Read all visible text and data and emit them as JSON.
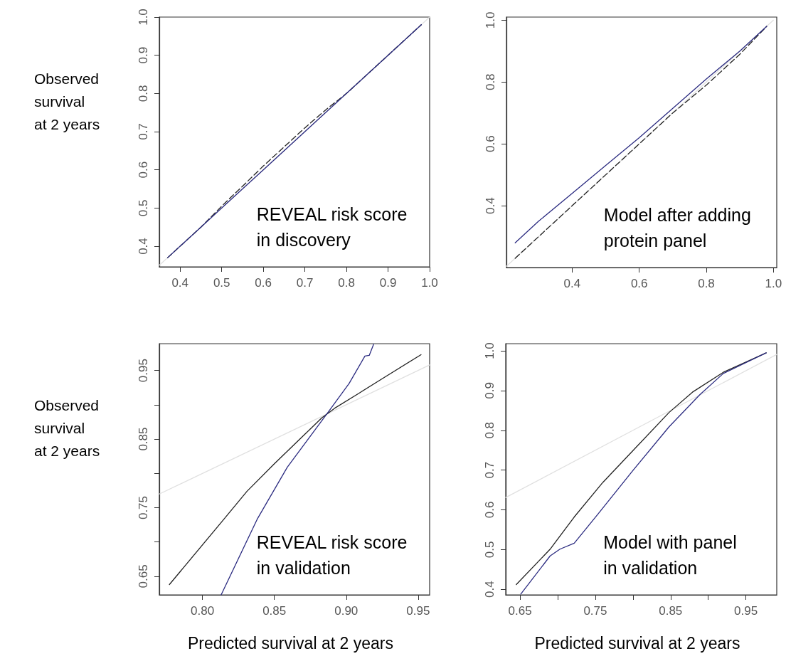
{
  "chart_data": [
    {
      "type": "line",
      "ylabel": "Observed\nsurvival\nat 2 years",
      "annotations": [
        "REVEAL risk score\nin discovery"
      ],
      "xlim": [
        0.35,
        1.0
      ],
      "ylim": [
        0.346,
        1.0
      ],
      "xticks": [
        0.4,
        0.5,
        0.6,
        0.7,
        0.8,
        0.9,
        {
          "value": 1,
          "label": "1.0"
        }
      ],
      "yticks": [
        0.4,
        0.5,
        0.6,
        0.7,
        0.8,
        0.9,
        {
          "value": 1,
          "label": "1.0"
        }
      ],
      "grid": false,
      "marker": "none",
      "series": [
        {
          "color": "#e0e0e0",
          "line_style": "solid",
          "x": [
            0.35,
            1.0
          ],
          "values": [
            0.35,
            1.0
          ]
        },
        {
          "color": "#222222",
          "line_style": "dashed",
          "x": [
            0.37,
            0.45,
            0.5,
            0.55,
            0.6,
            0.65,
            0.7,
            0.75,
            0.8,
            0.9,
            0.98
          ],
          "values": [
            0.37,
            0.45,
            0.505,
            0.557,
            0.61,
            0.66,
            0.71,
            0.757,
            0.8,
            0.9,
            0.98
          ]
        },
        {
          "color": "#2b2b80",
          "line_style": "solid",
          "x": [
            0.37,
            0.45,
            0.5,
            0.6,
            0.7,
            0.8,
            0.9,
            0.98
          ],
          "values": [
            0.37,
            0.45,
            0.5,
            0.6,
            0.7,
            0.8,
            0.9,
            0.98
          ]
        }
      ]
    },
    {
      "type": "line",
      "annotations": [
        "Model after adding\nprotein panel"
      ],
      "xlim": [
        0.204,
        1.01
      ],
      "ylim": [
        0.2,
        1.01
      ],
      "xticks": [
        0.4,
        0.6,
        0.8,
        {
          "value": 1,
          "label": "1.0"
        }
      ],
      "yticks": [
        0.4,
        0.6,
        0.8,
        {
          "value": 1,
          "label": "1.0"
        }
      ],
      "grid": false,
      "marker": "none",
      "series": [
        {
          "color": "#e0e0e0",
          "line_style": "solid",
          "x": [
            0.204,
            1.0
          ],
          "values": [
            0.204,
            1.0
          ]
        },
        {
          "color": "#222222",
          "line_style": "dashed",
          "x": [
            0.23,
            0.4,
            0.5,
            0.6,
            0.7,
            0.8,
            0.9,
            0.98
          ],
          "values": [
            0.23,
            0.4,
            0.5,
            0.6,
            0.7,
            0.79,
            0.89,
            0.98
          ]
        },
        {
          "color": "#2b2b80",
          "line_style": "solid",
          "x": [
            0.23,
            0.3,
            0.4,
            0.5,
            0.6,
            0.7,
            0.8,
            0.9,
            0.98
          ],
          "values": [
            0.28,
            0.35,
            0.44,
            0.53,
            0.62,
            0.715,
            0.81,
            0.9,
            0.98
          ]
        }
      ]
    },
    {
      "type": "line",
      "ylabel": "Observed\nsurvival\nat 2 years",
      "xlabel": "Predicted survival at 2 years",
      "annotations": [
        "REVEAL risk score\nin validation"
      ],
      "xlim": [
        0.77,
        0.958
      ],
      "ylim": [
        0.623,
        0.989
      ],
      "xticks": [
        {
          "value": 0.8,
          "label": "0.80"
        },
        0.85,
        {
          "value": 0.9,
          "label": "0.90"
        },
        0.95
      ],
      "yticks": [
        0.65,
        {
          "value": 0.7,
          "label": null
        },
        0.75,
        {
          "value": 0.8,
          "label": null
        },
        0.85,
        {
          "value": 0.9,
          "label": null
        },
        0.95
      ],
      "grid": false,
      "marker": "none",
      "series": [
        {
          "color": "#e0e0e0",
          "line_style": "solid",
          "x": [
            0.77,
            0.958
          ],
          "values": [
            0.77,
            0.958
          ]
        },
        {
          "color": "#222222",
          "line_style": "solid",
          "x": [
            0.777,
            0.814,
            0.831,
            0.85,
            0.883,
            0.892,
            0.909,
            0.925,
            0.952
          ],
          "values": [
            0.638,
            0.731,
            0.774,
            0.814,
            0.881,
            0.895,
            0.917,
            0.938,
            0.973
          ]
        },
        {
          "color": "#2b2b80",
          "line_style": "solid",
          "x": [
            0.813,
            0.838,
            0.859,
            0.888,
            0.902,
            0.913,
            0.916,
            0.919
          ],
          "values": [
            0.623,
            0.733,
            0.809,
            0.891,
            0.931,
            0.971,
            0.972,
            0.988
          ]
        }
      ]
    },
    {
      "type": "line",
      "xlabel": "Predicted survival at 2 years",
      "annotations": [
        "Model with panel\nin validation"
      ],
      "xlim": [
        0.631,
        0.991
      ],
      "ylim": [
        0.386,
        1.018
      ],
      "xticks": [
        0.65,
        {
          "value": 0.7,
          "label": null
        },
        0.75,
        {
          "value": 0.8,
          "label": null
        },
        0.85,
        {
          "value": 0.9,
          "label": null
        },
        0.95
      ],
      "yticks": [
        0.4,
        0.5,
        0.6,
        0.7,
        0.8,
        0.9,
        {
          "value": 1,
          "label": "1.0"
        }
      ],
      "grid": false,
      "marker": "none",
      "series": [
        {
          "color": "#e0e0e0",
          "line_style": "solid",
          "x": [
            0.631,
            0.991
          ],
          "values": [
            0.631,
            0.991
          ]
        },
        {
          "color": "#222222",
          "line_style": "solid",
          "x": [
            0.645,
            0.69,
            0.722,
            0.76,
            0.8,
            0.848,
            0.879,
            0.92,
            0.977
          ],
          "values": [
            0.412,
            0.501,
            0.582,
            0.669,
            0.749,
            0.845,
            0.896,
            0.946,
            0.995
          ]
        },
        {
          "color": "#2b2b80",
          "line_style": "solid",
          "x": [
            0.651,
            0.69,
            0.703,
            0.722,
            0.753,
            0.8,
            0.848,
            0.889,
            0.92,
            0.977
          ],
          "values": [
            0.388,
            0.484,
            0.501,
            0.516,
            0.588,
            0.699,
            0.809,
            0.89,
            0.943,
            0.995
          ]
        }
      ]
    }
  ]
}
